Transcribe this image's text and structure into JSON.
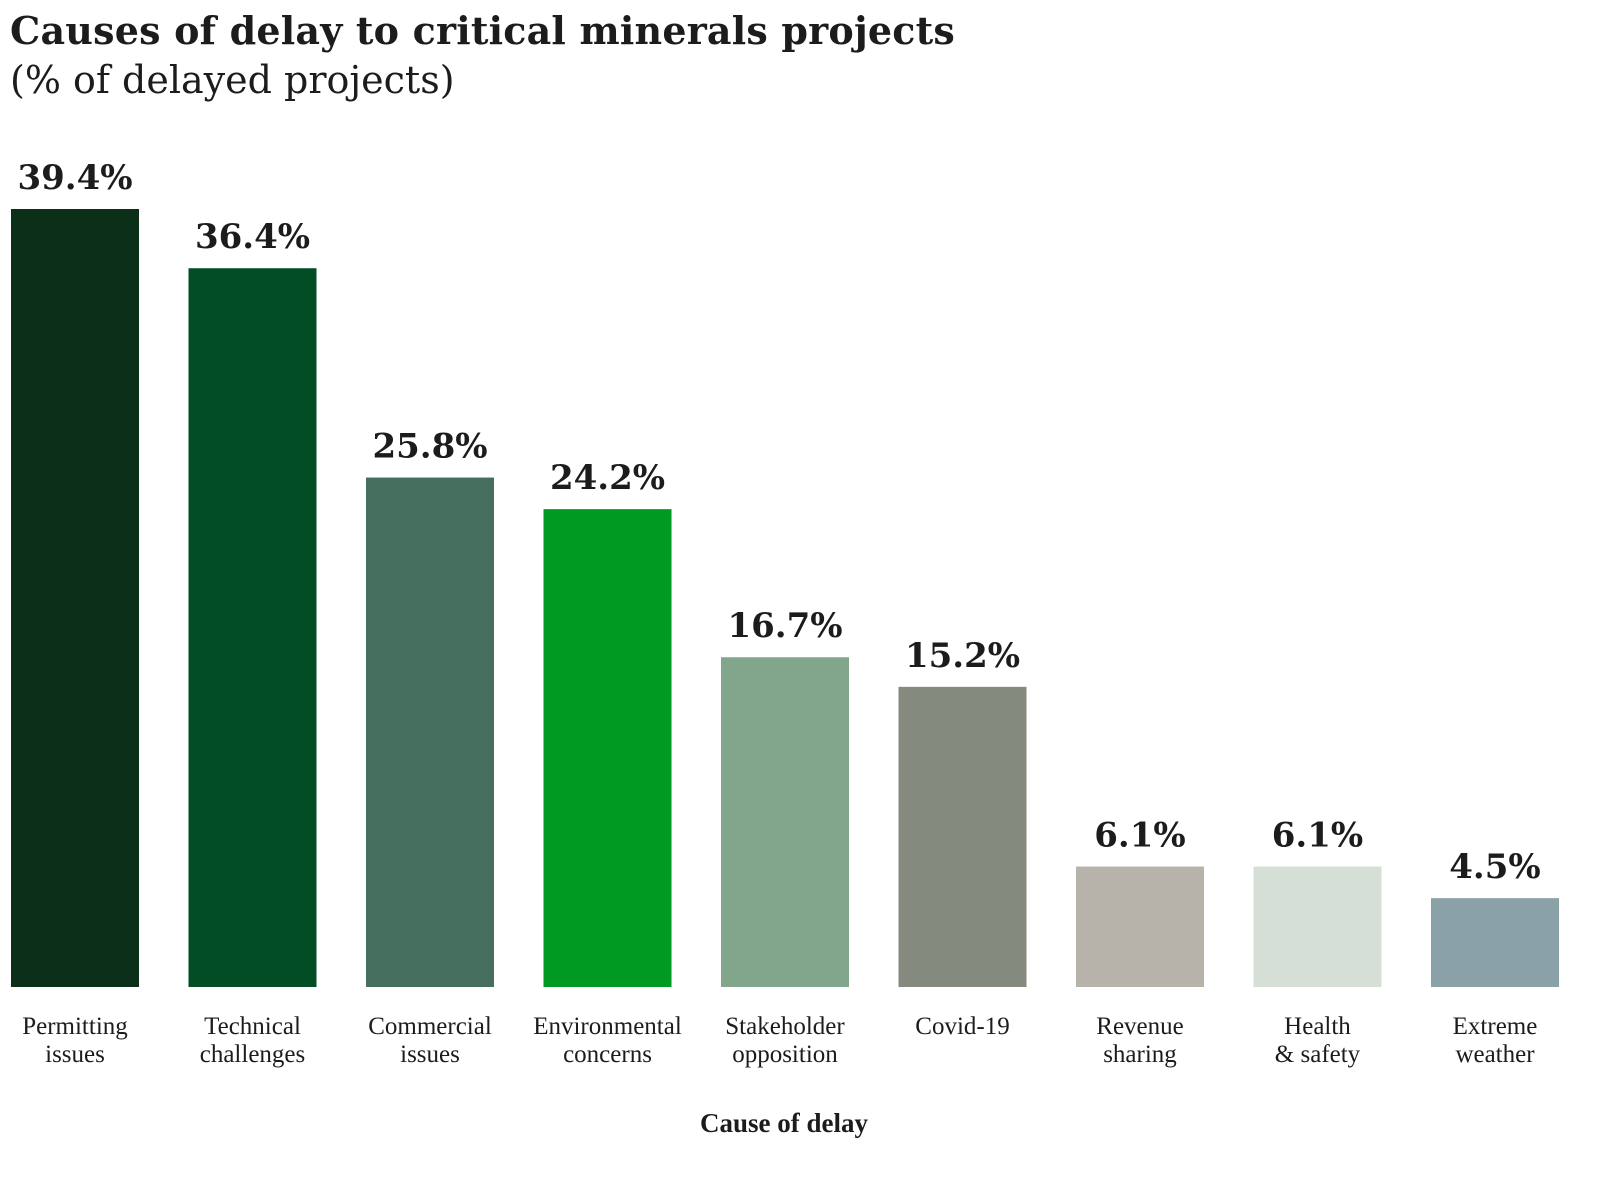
{
  "chart_data": {
    "type": "bar",
    "title": "Causes of delay to critical minerals projects",
    "subtitle": "(% of delayed projects)",
    "xlabel": "Cause of delay",
    "ylabel": "",
    "ylim": [
      0,
      39.4
    ],
    "grid": false,
    "categories": [
      [
        "Permitting",
        "issues"
      ],
      [
        "Technical",
        "challenges"
      ],
      [
        "Commercial",
        "issues"
      ],
      [
        "Environmental",
        "concerns"
      ],
      [
        "Stakeholder",
        "opposition"
      ],
      [
        "Covid-19"
      ],
      [
        "Revenue",
        "sharing"
      ],
      [
        "Health",
        "& safety"
      ],
      [
        "Extreme",
        "weather"
      ]
    ],
    "values": [
      39.4,
      36.4,
      25.8,
      24.2,
      16.7,
      15.2,
      6.1,
      6.1,
      4.5
    ],
    "value_labels": [
      "39.4%",
      "36.4%",
      "25.8%",
      "24.2%",
      "16.7%",
      "15.2%",
      "6.1%",
      "6.1%",
      "4.5%"
    ],
    "colors": [
      "#0b2f18",
      "#024d23",
      "#466e5e",
      "#009a22",
      "#82a68b",
      "#858a7f",
      "#b8b3aa",
      "#d5dfd5",
      "#8aa2a7"
    ]
  }
}
